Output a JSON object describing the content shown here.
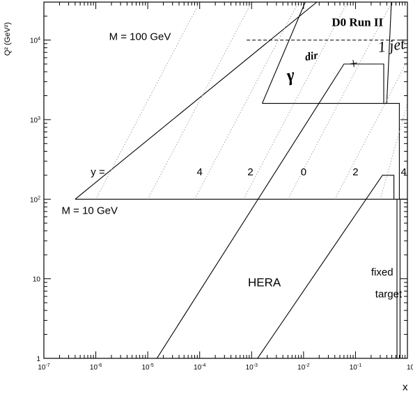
{
  "chart_data": {
    "type": "line",
    "title": "",
    "xlabel": "x",
    "ylabel": "Q² (GeV²)",
    "xscale": "log",
    "yscale": "log",
    "xlim": [
      1e-07,
      1
    ],
    "ylim": [
      1,
      30000
    ],
    "grid": false,
    "x_ticks": [
      {
        "value": 1e-07,
        "base": "10",
        "exp": "-7"
      },
      {
        "value": 1e-06,
        "base": "10",
        "exp": "-6"
      },
      {
        "value": 1e-05,
        "base": "10",
        "exp": "-5"
      },
      {
        "value": 0.0001,
        "base": "10",
        "exp": "-4"
      },
      {
        "value": 0.001,
        "base": "10",
        "exp": "-3"
      },
      {
        "value": 0.01,
        "base": "10",
        "exp": "-2"
      },
      {
        "value": 0.1,
        "base": "10",
        "exp": "-1"
      },
      {
        "value": 1,
        "base": "10",
        "exp": "0"
      }
    ],
    "y_ticks": [
      {
        "value": 1,
        "base": "1",
        "exp": ""
      },
      {
        "value": 10,
        "base": "10",
        "exp": ""
      },
      {
        "value": 100,
        "base": "10",
        "exp": "2"
      },
      {
        "value": 1000,
        "base": "10",
        "exp": "3"
      },
      {
        "value": 10000,
        "base": "10",
        "exp": "4"
      }
    ],
    "series": [
      {
        "name": "",
        "style": "solid",
        "points": [
          [
            4e-07,
            100
          ],
          [
            0.018,
            30000
          ]
        ]
      },
      {
        "name": "",
        "style": "solid",
        "points": [
          [
            4e-07,
            100
          ],
          [
            1,
            100
          ]
        ]
      },
      {
        "name": "",
        "style": "dashed",
        "points": [
          [
            0.0008,
            10000
          ],
          [
            1,
            10000
          ]
        ]
      },
      {
        "name": "",
        "style": "solid",
        "points": [
          [
            1.5e-05,
            1
          ],
          [
            0.06,
            5000
          ],
          [
            0.35,
            5000
          ],
          [
            0.35,
            1600
          ],
          [
            0.7,
            1600
          ],
          [
            0.7,
            100
          ]
        ]
      },
      {
        "name": "",
        "style": "solid",
        "points": [
          [
            0.0013,
            1
          ],
          [
            0.33,
            200
          ],
          [
            0.55,
            200
          ],
          [
            0.55,
            100
          ]
        ]
      },
      {
        "name": "",
        "style": "solid",
        "points": [
          [
            0.0016,
            1600
          ],
          [
            0.013,
            40000
          ],
          [
            0.5,
            40000
          ],
          [
            0.4,
            1600
          ],
          [
            0.0016,
            1600
          ]
        ]
      },
      {
        "name": "",
        "style": "solid",
        "points": [
          [
            0.63,
            100
          ],
          [
            0.63,
            1
          ]
        ]
      },
      {
        "name": "",
        "style": "solid",
        "points": [
          [
            0.72,
            100
          ],
          [
            0.72,
            1
          ]
        ]
      },
      {
        "name": "",
        "style": "dotted",
        "points": [
          [
            1e-06,
            100
          ],
          [
            0.0001,
            30000
          ]
        ]
      },
      {
        "name": "",
        "style": "dotted",
        "points": [
          [
            1e-05,
            100
          ],
          [
            0.001,
            30000
          ]
        ]
      },
      {
        "name": "",
        "style": "dotted",
        "points": [
          [
            8e-05,
            100
          ],
          [
            0.008,
            30000
          ]
        ]
      },
      {
        "name": "",
        "style": "dotted",
        "points": [
          [
            0.0007,
            100
          ],
          [
            0.07,
            30000
          ]
        ]
      },
      {
        "name": "",
        "style": "dotted",
        "points": [
          [
            0.005,
            100
          ],
          [
            0.5,
            30000
          ]
        ]
      },
      {
        "name": "",
        "style": "dotted",
        "points": [
          [
            0.04,
            100
          ],
          [
            1,
            5500
          ]
        ]
      },
      {
        "name": "",
        "style": "dotted",
        "points": [
          [
            0.3,
            100
          ],
          [
            1,
            1600
          ]
        ]
      }
    ],
    "annotations": [
      {
        "id": "m100",
        "text": "M = 100 GeV",
        "x": 1.8e-06,
        "y": 10000
      },
      {
        "id": "m10",
        "text": "M = 10 GeV",
        "x": 2.2e-07,
        "y": 65
      },
      {
        "id": "y-label",
        "text": "y =",
        "x": 8e-07,
        "y": 200
      },
      {
        "id": "y4a",
        "text": "4",
        "x": 0.0001,
        "y": 200
      },
      {
        "id": "y2a",
        "text": "2",
        "x": 0.00095,
        "y": 200
      },
      {
        "id": "y0",
        "text": "0",
        "x": 0.01,
        "y": 200
      },
      {
        "id": "y2b",
        "text": "2",
        "x": 0.1,
        "y": 200
      },
      {
        "id": "y4b",
        "text": "4",
        "x": 0.85,
        "y": 200
      },
      {
        "id": "hera",
        "text": "HERA",
        "x": 0.00085,
        "y": 8
      },
      {
        "id": "fixed",
        "text": "fixed",
        "x": 0.2,
        "y": 11
      },
      {
        "id": "target",
        "text": "target",
        "x": 0.24,
        "y": 5.8
      },
      {
        "id": "d0",
        "text": "D0 Run II",
        "x": 0.035,
        "y": 15000
      },
      {
        "id": "gamma",
        "text": "γ",
        "x": 0.005,
        "y": 3000
      },
      {
        "id": "dir",
        "text": "dir",
        "x": 0.011,
        "y": 5500
      },
      {
        "id": "plus",
        "text": "+",
        "x": 0.075,
        "y": 4300
      },
      {
        "id": "jet",
        "text": "1 jet",
        "x": 0.28,
        "y": 7000
      }
    ]
  }
}
